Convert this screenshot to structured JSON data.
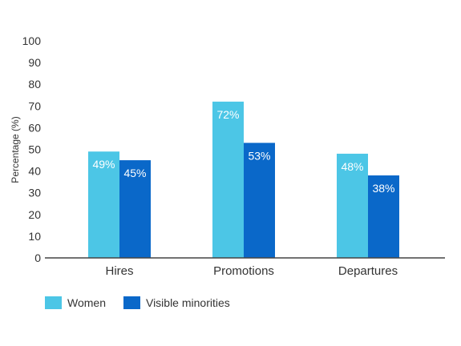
{
  "chart_data": {
    "type": "bar",
    "categories": [
      "Hires",
      "Promotions",
      "Departures"
    ],
    "series": [
      {
        "name": "Women",
        "values": [
          49,
          72,
          48
        ],
        "labels": [
          "49%",
          "72%",
          "48%"
        ],
        "color": "#4cc6e6"
      },
      {
        "name": "Visible minorities",
        "values": [
          45,
          53,
          38
        ],
        "labels": [
          "45%",
          "53%",
          "38%"
        ],
        "color": "#0a68c9"
      }
    ],
    "ylabel": "Percentage (%)",
    "ylim": [
      0,
      100
    ],
    "yticks": [
      "0",
      "10",
      "20",
      "30",
      "40",
      "50",
      "60",
      "70",
      "80",
      "90",
      "100"
    ],
    "grid": false,
    "legend": "bottom-left"
  }
}
